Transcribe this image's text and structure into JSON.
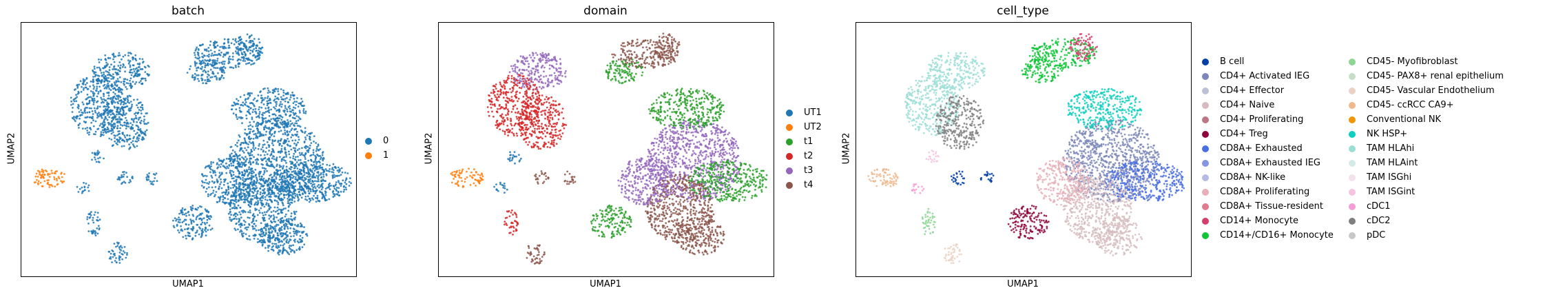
{
  "chart_data": [
    {
      "type": "scatter",
      "title": "batch",
      "xlabel": "UMAP1",
      "ylabel": "UMAP2",
      "legend_position": "right",
      "grid": false,
      "legend": [
        {
          "label": "0",
          "color": "#1f77b4"
        },
        {
          "label": "1",
          "color": "#ff7f0e"
        }
      ],
      "base_color": "#1f77b4"
    },
    {
      "type": "scatter",
      "title": "domain",
      "xlabel": "UMAP1",
      "ylabel": "UMAP2",
      "legend_position": "right",
      "grid": false,
      "legend": [
        {
          "label": "UT1",
          "color": "#1f77b4"
        },
        {
          "label": "UT2",
          "color": "#ff7f0e"
        },
        {
          "label": "t1",
          "color": "#2ca02c"
        },
        {
          "label": "t2",
          "color": "#d62728"
        },
        {
          "label": "t3",
          "color": "#9467bd"
        },
        {
          "label": "t4",
          "color": "#8c564b"
        }
      ],
      "base_color": "#8c564b"
    },
    {
      "type": "scatter",
      "title": "cell_type",
      "xlabel": "UMAP1",
      "ylabel": "UMAP2",
      "legend_position": "right",
      "grid": false,
      "legend": [
        {
          "label": "B cell",
          "color": "#023fa5"
        },
        {
          "label": "CD4+ Activated IEG",
          "color": "#7d87b9"
        },
        {
          "label": "CD4+ Effector",
          "color": "#bec1d4"
        },
        {
          "label": "CD4+ Naive",
          "color": "#d6bcc0"
        },
        {
          "label": "CD4+ Proliferating",
          "color": "#bb7784"
        },
        {
          "label": "CD4+ Treg",
          "color": "#8e063b"
        },
        {
          "label": "CD8A+ Exhausted",
          "color": "#4a6fe3"
        },
        {
          "label": "CD8A+ Exhausted IEG",
          "color": "#8595e1"
        },
        {
          "label": "CD8A+ NK-like",
          "color": "#b5bbe3"
        },
        {
          "label": "CD8A+ Proliferating",
          "color": "#e6afb9"
        },
        {
          "label": "CD8A+ Tissue-resident",
          "color": "#e07b91"
        },
        {
          "label": "CD14+ Monocyte",
          "color": "#d33f6a"
        },
        {
          "label": "CD14+/CD16+ Monocyte",
          "color": "#11c638"
        },
        {
          "label": "CD45- Myofibroblast",
          "color": "#8dd593"
        },
        {
          "label": "CD45- PAX8+ renal epithelium",
          "color": "#c6dec7"
        },
        {
          "label": "CD45- Vascular Endothelium",
          "color": "#ead3c6"
        },
        {
          "label": "CD45- ccRCC CA9+",
          "color": "#f0b98d"
        },
        {
          "label": "Conventional NK",
          "color": "#ef9708"
        },
        {
          "label": "NK HSP+",
          "color": "#0fcfc0"
        },
        {
          "label": "TAM HLAhi",
          "color": "#9cded6"
        },
        {
          "label": "TAM HLAint",
          "color": "#d5eae7"
        },
        {
          "label": "TAM ISGhi",
          "color": "#f3e1eb"
        },
        {
          "label": "TAM ISGint",
          "color": "#f6c4e1"
        },
        {
          "label": "cDC1",
          "color": "#f79cd4"
        },
        {
          "label": "cDC2",
          "color": "#7f7f7f"
        },
        {
          "label": "pDC",
          "color": "#c7c7c7"
        }
      ],
      "base_color": "#e6afb9"
    }
  ]
}
